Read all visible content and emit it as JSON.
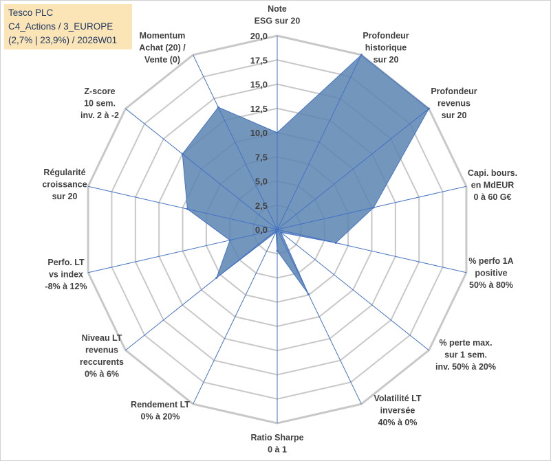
{
  "header": {
    "line1": "Tesco PLC",
    "line2": "C4_Actions / 3_EUROPE",
    "line3": "(2,7% | 23,9%) / 2026W01"
  },
  "chart_data": {
    "type": "radar",
    "title": "Tesco PLC",
    "rmin": 0,
    "rmax": 20,
    "ticks": [
      0,
      2.5,
      5,
      7.5,
      10,
      12.5,
      15,
      17.5,
      20
    ],
    "tick_labels": [
      "0,0",
      "2,5",
      "5,0",
      "7,5",
      "10,0",
      "12,5",
      "15,0",
      "17,5",
      "20,0"
    ],
    "axes": [
      {
        "label": [
          "Note",
          "ESG sur 20"
        ],
        "value": 10
      },
      {
        "label": [
          "Profondeur",
          "historique",
          "sur 20"
        ],
        "value": 20
      },
      {
        "label": [
          "Profondeur",
          "revenus",
          "sur 20"
        ],
        "value": 20
      },
      {
        "label": [
          "Capi. bours.",
          "en MdEUR",
          "0 à 60 G€"
        ],
        "value": 10.2
      },
      {
        "label": [
          "% perfo 1A",
          "positive",
          "50% à 80%"
        ],
        "value": 6.2
      },
      {
        "label": [
          "% perte max.",
          "sur 1 sem.",
          "inv. 50% à 20%"
        ],
        "value": 0.5
      },
      {
        "label": [
          "Volatilité LT",
          "inversée",
          "40% à 0%"
        ],
        "value": 7.4
      },
      {
        "label": [
          "Ratio Sharpe",
          "0 à 1"
        ],
        "value": 2.2
      },
      {
        "label": [
          "Rendement LT",
          "0% à 20%"
        ],
        "value": 0.3
      },
      {
        "label": [
          "Niveau LT",
          "revenus",
          "reccurents",
          "0% à 6%"
        ],
        "value": 8.0
      },
      {
        "label": [
          "Perfo. LT",
          "vs index",
          "-8% à 12%"
        ],
        "value": 5.0
      },
      {
        "label": [
          "Régularité",
          "croissance",
          "sur 20"
        ],
        "value": 9.5
      },
      {
        "label": [
          "Z-score",
          "10 sem.",
          "inv. 2 à -2"
        ],
        "value": 12.5
      },
      {
        "label": [
          "Momentum",
          "Achat (20) /",
          "Vente (0)"
        ],
        "value": 14.0
      }
    ],
    "colors": {
      "fill": "#5b84b1",
      "stroke": "#4472c4",
      "grid": "#c8c8c8",
      "spoke": "#4472c4"
    }
  }
}
